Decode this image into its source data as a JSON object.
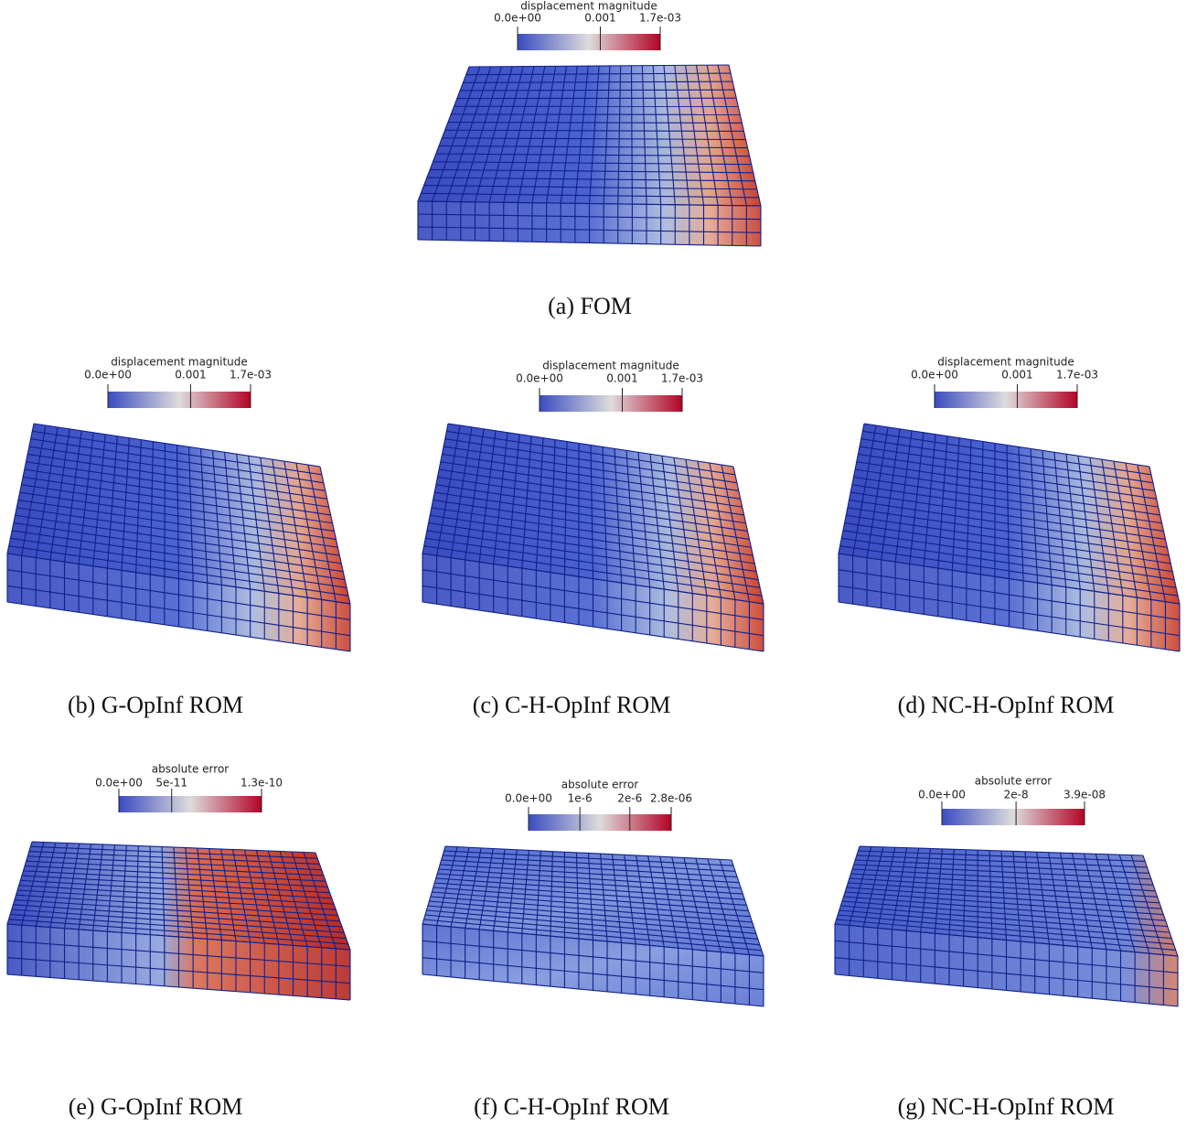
{
  "panels": [
    {
      "colorbar": {
        "title": "displacement magnitude",
        "ticks": [
          "0.0e+00",
          "0.001",
          "1.7e-03"
        ]
      },
      "caption": "(a) FOM"
    },
    {
      "colorbar": {
        "title": "displacement magnitude",
        "ticks": [
          "0.0e+00",
          "0.001",
          "1.7e-03"
        ]
      },
      "caption": "(b) G-OpInf ROM"
    },
    {
      "colorbar": {
        "title": "displacement magnitude",
        "ticks": [
          "0.0e+00",
          "0.001",
          "1.7e-03"
        ]
      },
      "caption": "(c) C-H-OpInf ROM"
    },
    {
      "colorbar": {
        "title": "displacement magnitude",
        "ticks": [
          "0.0e+00",
          "0.001",
          "1.7e-03"
        ]
      },
      "caption": "(d) NC-H-OpInf ROM"
    },
    {
      "colorbar": {
        "title": "absolute error",
        "ticks": [
          "0.0e+00",
          "5e-11",
          "1.3e-10"
        ]
      },
      "caption": "(e) G-OpInf ROM"
    },
    {
      "colorbar": {
        "title": "absolute error",
        "ticks": [
          "0.0e+00",
          "1e-6",
          "2e-6",
          "2.8e-06"
        ]
      },
      "caption": "(f) C-H-OpInf ROM"
    },
    {
      "colorbar": {
        "title": "absolute error",
        "ticks": [
          "0.0e+00",
          "2e-8",
          "3.9e-08"
        ]
      },
      "caption": "(g) NC-H-OpInf ROM"
    }
  ]
}
